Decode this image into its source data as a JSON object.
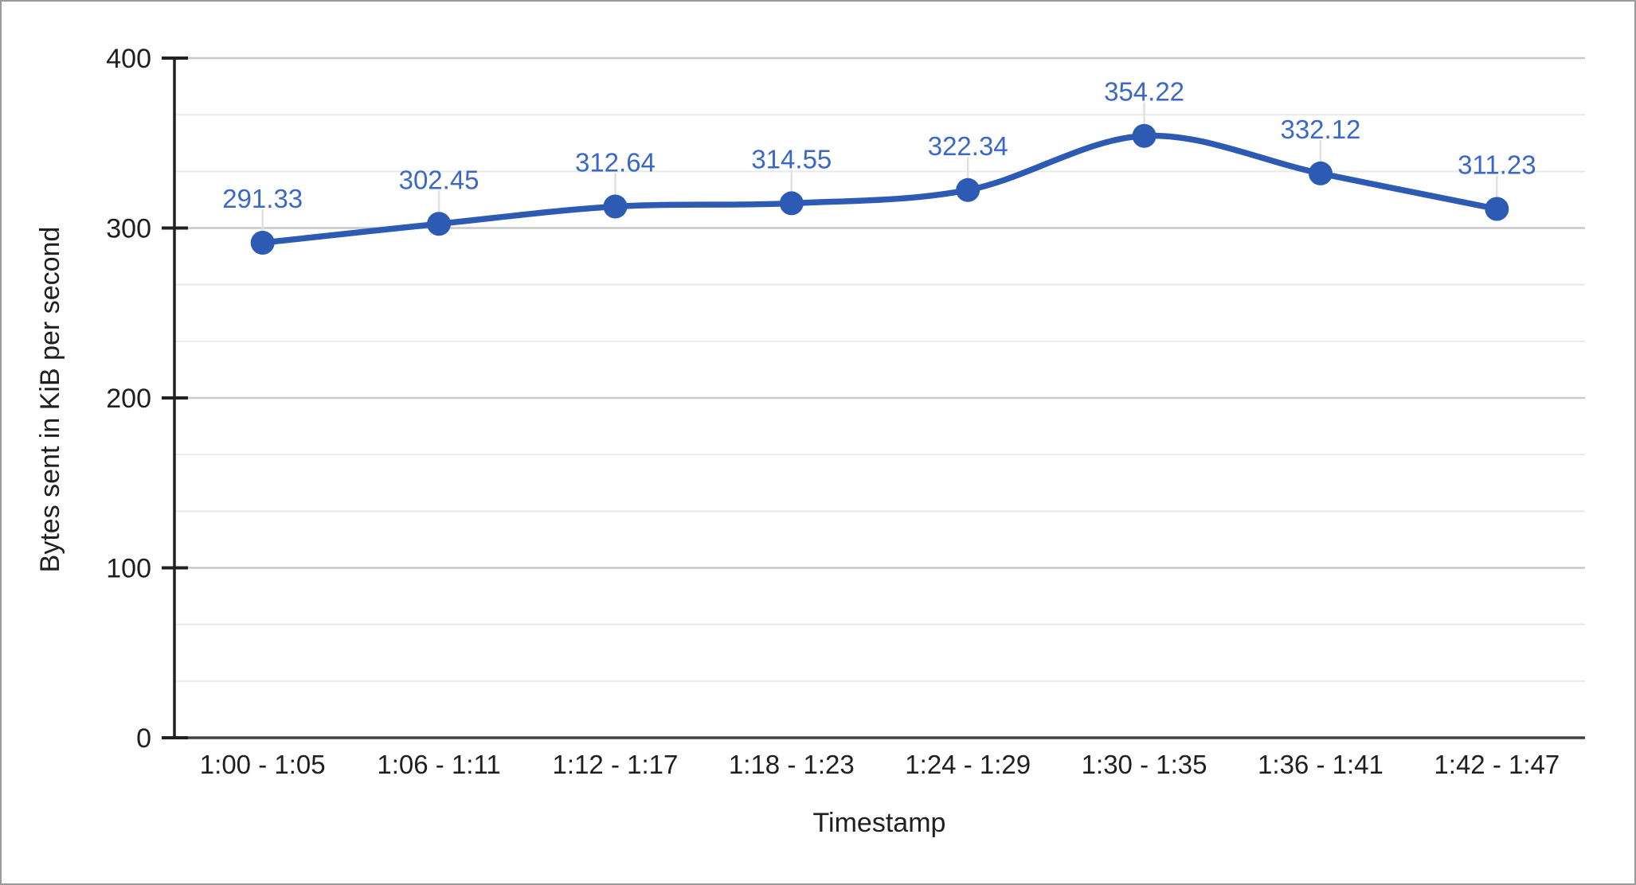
{
  "window": {
    "background": "#ffffff",
    "border_color": "#9b9b9b"
  },
  "chart_data": {
    "type": "line",
    "title": "",
    "xlabel": "Timestamp",
    "ylabel": "Bytes sent in KiB per second",
    "categories": [
      "1:00 - 1:05",
      "1:06 - 1:11",
      "1:12 - 1:17",
      "1:18 - 1:23",
      "1:24 - 1:29",
      "1:30 - 1:35",
      "1:36 - 1:41",
      "1:42 - 1:47"
    ],
    "series": [
      {
        "name": "Bytes sent in KiB per second",
        "values": [
          291.33,
          302.45,
          312.64,
          314.55,
          322.34,
          354.22,
          332.12,
          311.23
        ],
        "value_labels": [
          "291.33",
          "302.45",
          "312.64",
          "314.55",
          "322.34",
          "354.22",
          "332.12",
          "311.23"
        ],
        "color": "#2d5bb4",
        "label_color": "#3b67c5",
        "marker": "circle",
        "smooth": true
      }
    ],
    "ylim": [
      0,
      400
    ],
    "y_ticks": [
      "0",
      "100",
      "200",
      "300",
      "400"
    ],
    "y_major_step": 100,
    "y_minor_divisions": 3,
    "grid": {
      "on": true,
      "major_color": "#c9c9c9",
      "minor_color": "#e9e9e9"
    },
    "axis_color": "#212121",
    "baseline_color": "#424242",
    "tick_label_color": "#1f1f1f",
    "callout_color": "#e0e0e0",
    "legend_position": "none"
  }
}
